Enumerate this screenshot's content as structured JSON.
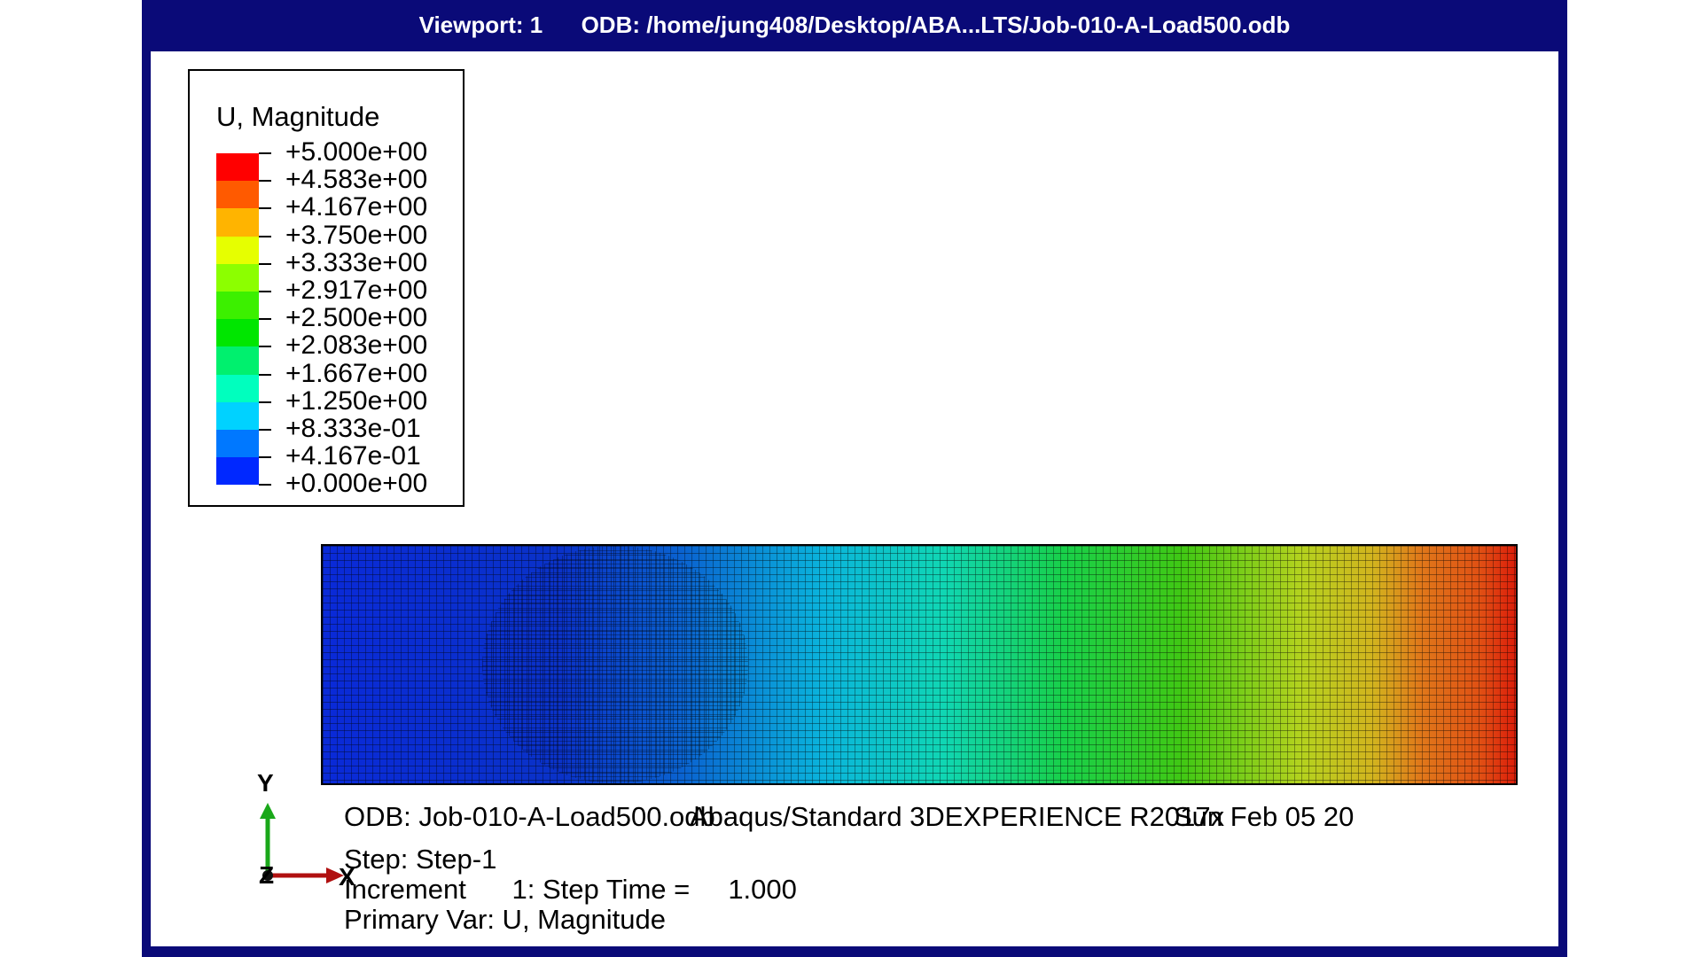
{
  "viewport": {
    "title": "Viewport: 1      ODB: /home/jung408/Desktop/ABA...LTS/Job-010-A-Load500.odb"
  },
  "legend": {
    "title": "U, Magnitude",
    "labels": [
      "+5.000e+00",
      "+4.583e+00",
      "+4.167e+00",
      "+3.750e+00",
      "+3.333e+00",
      "+2.917e+00",
      "+2.500e+00",
      "+2.083e+00",
      "+1.667e+00",
      "+1.250e+00",
      "+8.333e-01",
      "+4.167e-01",
      "+0.000e+00"
    ],
    "colors": [
      "#ff0000",
      "#ff5a00",
      "#ffb400",
      "#e6ff00",
      "#8cff00",
      "#3cf000",
      "#00e600",
      "#00f06e",
      "#00ffbe",
      "#00d2ff",
      "#0078ff",
      "#0028ff"
    ]
  },
  "info": {
    "line1_odb": "ODB: Job-010-A-Load500.odb",
    "line1_solver": "Abaqus/Standard 3DEXPERIENCE R2017x",
    "line1_date": "Sun Feb 05 20",
    "step": "Step: Step-1",
    "increment": "Increment      1: Step Time =     1.000",
    "primary_var": "Primary Var: U, Magnitude"
  },
  "triad": {
    "y": "Y",
    "x": "X",
    "z": "Z"
  }
}
